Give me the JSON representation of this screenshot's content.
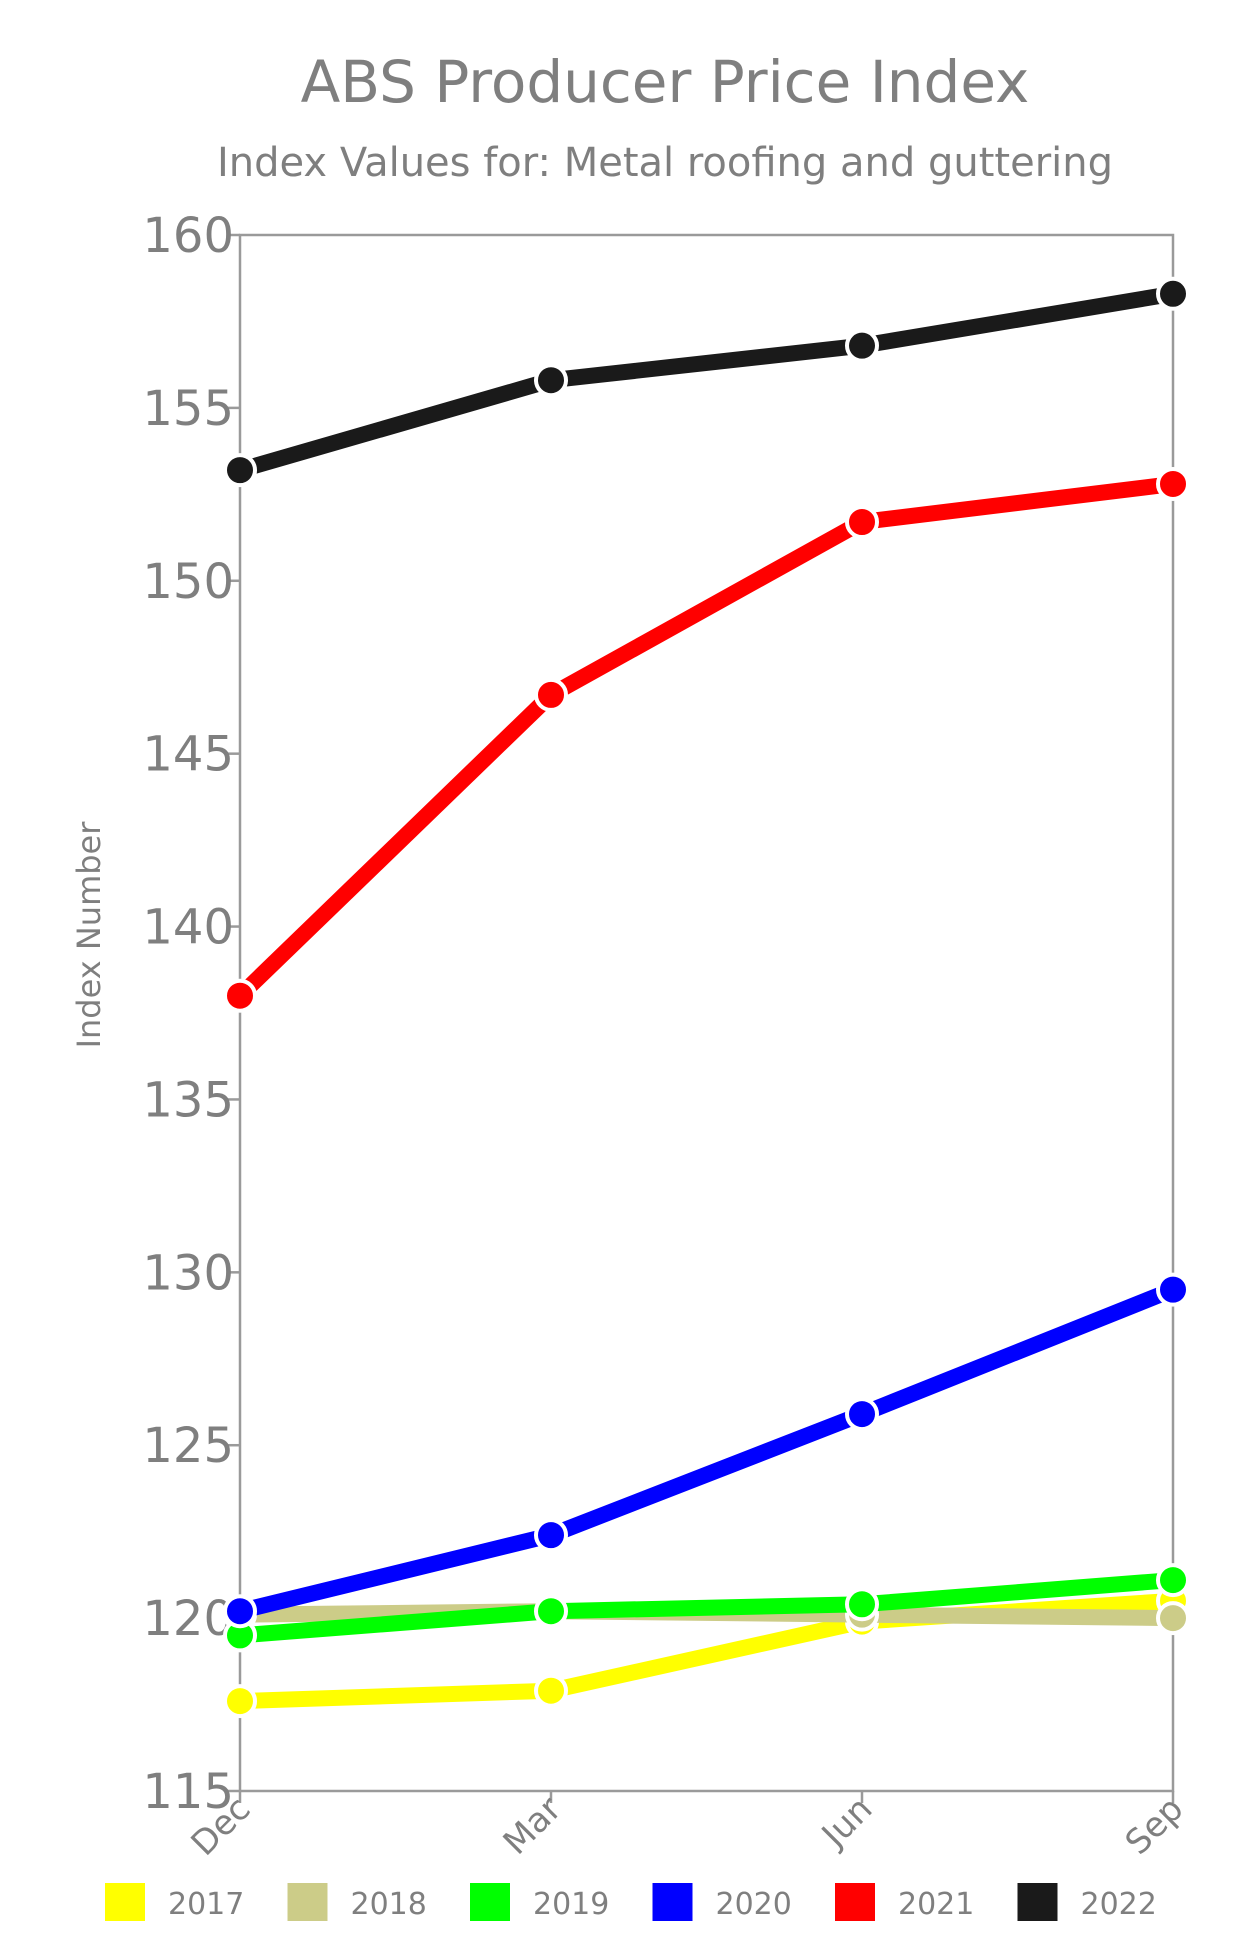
{
  "chart_data": {
    "type": "line",
    "title": "ABS Producer Price Index",
    "subtitle": "Index Values for: Metal roofing and guttering",
    "xlabel": "",
    "ylabel": "Index Number",
    "categories": [
      "Dec",
      "Mar",
      "Jun",
      "Sep"
    ],
    "ylim": [
      115,
      160
    ],
    "yticks": [
      "115",
      "120",
      "125",
      "130",
      "135",
      "140",
      "145",
      "150",
      "155",
      "160"
    ],
    "grid": false,
    "legend_position": "bottom",
    "series": [
      {
        "name": "2017",
        "color": "#ffff00",
        "values": [
          117.6,
          117.9,
          119.9,
          120.5
        ]
      },
      {
        "name": "2018",
        "color": "#cccc88",
        "values": [
          120.1,
          120.2,
          120.1,
          120.0
        ]
      },
      {
        "name": "2019",
        "color": "#00ff00",
        "values": [
          119.5,
          120.2,
          120.4,
          121.1
        ]
      },
      {
        "name": "2020",
        "color": "#0000ff",
        "values": [
          120.2,
          122.4,
          125.9,
          129.5
        ]
      },
      {
        "name": "2021",
        "color": "#ff0000",
        "values": [
          138.0,
          146.7,
          151.7,
          152.8
        ]
      },
      {
        "name": "2022",
        "color": "#1a1a1a",
        "values": [
          153.2,
          155.8,
          156.8,
          158.3
        ]
      }
    ]
  }
}
